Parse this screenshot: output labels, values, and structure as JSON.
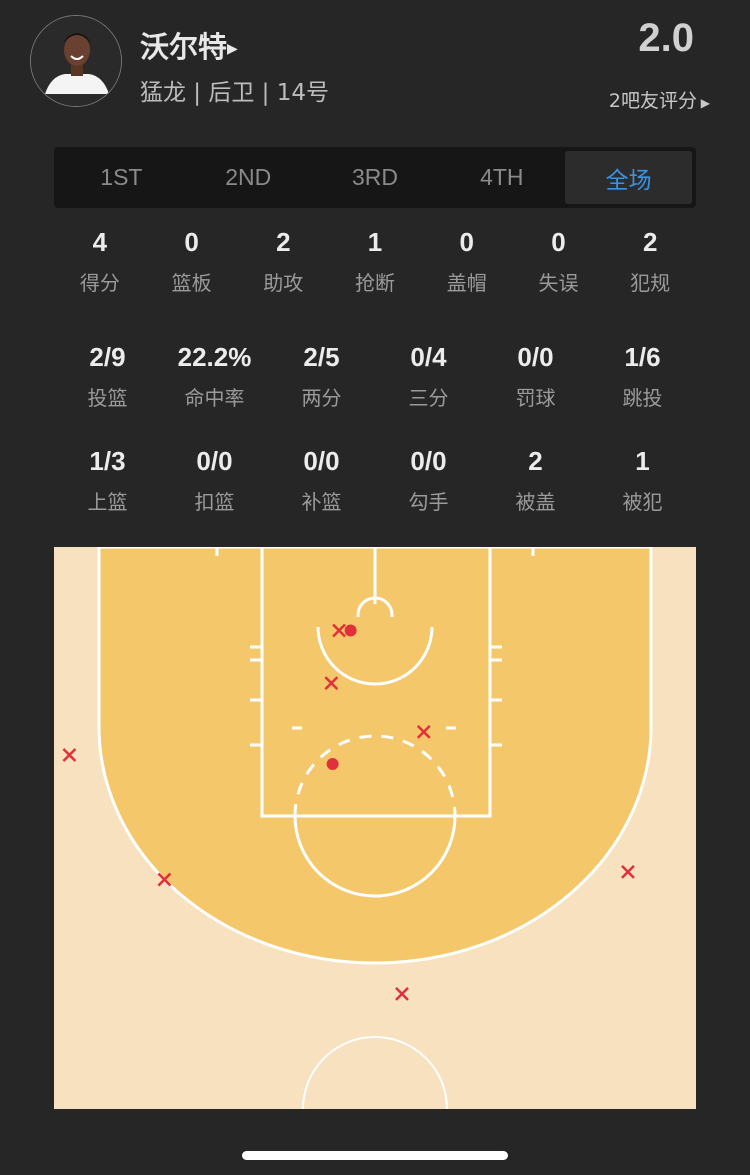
{
  "player": {
    "name": "沃尔特",
    "team_pos_num": "猛龙 | 后卫 | 14号",
    "rating": "2.0",
    "raters": "2吧友评分"
  },
  "tabs": [
    {
      "label": "1ST"
    },
    {
      "label": "2ND"
    },
    {
      "label": "3RD"
    },
    {
      "label": "4TH"
    },
    {
      "label": "全场",
      "active": true
    }
  ],
  "stats_row1": [
    {
      "v": "4",
      "l": "得分"
    },
    {
      "v": "0",
      "l": "篮板"
    },
    {
      "v": "2",
      "l": "助攻"
    },
    {
      "v": "1",
      "l": "抢断"
    },
    {
      "v": "0",
      "l": "盖帽"
    },
    {
      "v": "0",
      "l": "失误"
    },
    {
      "v": "2",
      "l": "犯规"
    }
  ],
  "stats_row2": [
    {
      "v": "2/9",
      "l": "投篮"
    },
    {
      "v": "22.2%",
      "l": "命中率"
    },
    {
      "v": "2/5",
      "l": "两分"
    },
    {
      "v": "0/4",
      "l": "三分"
    },
    {
      "v": "0/0",
      "l": "罚球"
    },
    {
      "v": "1/6",
      "l": "跳投"
    }
  ],
  "stats_row3": [
    {
      "v": "1/3",
      "l": "上篮"
    },
    {
      "v": "0/0",
      "l": "扣篮"
    },
    {
      "v": "0/0",
      "l": "补篮"
    },
    {
      "v": "0/0",
      "l": "勾手"
    },
    {
      "v": "2",
      "l": "被盖"
    },
    {
      "v": "1",
      "l": "被犯"
    }
  ],
  "colors": {
    "accent": "#3d92df",
    "make": "#e0303a",
    "miss": "#e0303a",
    "paint": "#f5c76b",
    "court": "#f8e1bf"
  },
  "shot_chart": {
    "units": "feet from center line (x) and baseline (y)",
    "shots": [
      {
        "x": -2.8,
        "y": 6.5,
        "made": false
      },
      {
        "x": -1.9,
        "y": 6.5,
        "made": true
      },
      {
        "x": -3.4,
        "y": 10.6,
        "made": false
      },
      {
        "x": 3.8,
        "y": 14.4,
        "made": false
      },
      {
        "x": -3.3,
        "y": 16.9,
        "made": true
      },
      {
        "x": -23.8,
        "y": 16.2,
        "made": false
      },
      {
        "x": -16.4,
        "y": 25.9,
        "made": false
      },
      {
        "x": 19.7,
        "y": 25.3,
        "made": false
      },
      {
        "x": 2.1,
        "y": 34.8,
        "made": false
      }
    ]
  }
}
